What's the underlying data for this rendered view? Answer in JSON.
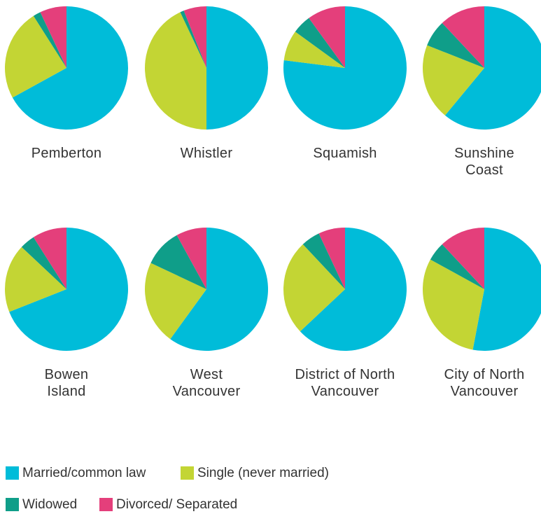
{
  "legend": {
    "categories": [
      "Married/common law",
      "Single (never married)",
      "Widowed",
      "Divorced/ Separated"
    ],
    "colors": [
      "#00bcd9",
      "#c3d534",
      "#0f9e89",
      "#e43f7b"
    ]
  },
  "chart_data": [
    {
      "type": "pie",
      "title": "Pemberton",
      "values": [
        67,
        24,
        2,
        7
      ]
    },
    {
      "type": "pie",
      "title": "Whistler",
      "values": [
        50,
        43,
        1,
        6
      ]
    },
    {
      "type": "pie",
      "title": "Squamish",
      "values": [
        77,
        8,
        5,
        10
      ]
    },
    {
      "type": "pie",
      "title": "Sunshine\nCoast",
      "values": [
        61,
        20,
        7,
        12
      ]
    },
    {
      "type": "pie",
      "title": "Bowen\nIsland",
      "values": [
        69,
        18,
        4,
        9
      ]
    },
    {
      "type": "pie",
      "title": "West\nVancouver",
      "values": [
        60,
        22,
        10,
        8
      ]
    },
    {
      "type": "pie",
      "title": "District of North\nVancouver",
      "values": [
        63,
        25,
        5,
        7
      ]
    },
    {
      "type": "pie",
      "title": "City of North\nVancouver",
      "values": [
        53,
        30,
        5,
        12
      ]
    }
  ]
}
